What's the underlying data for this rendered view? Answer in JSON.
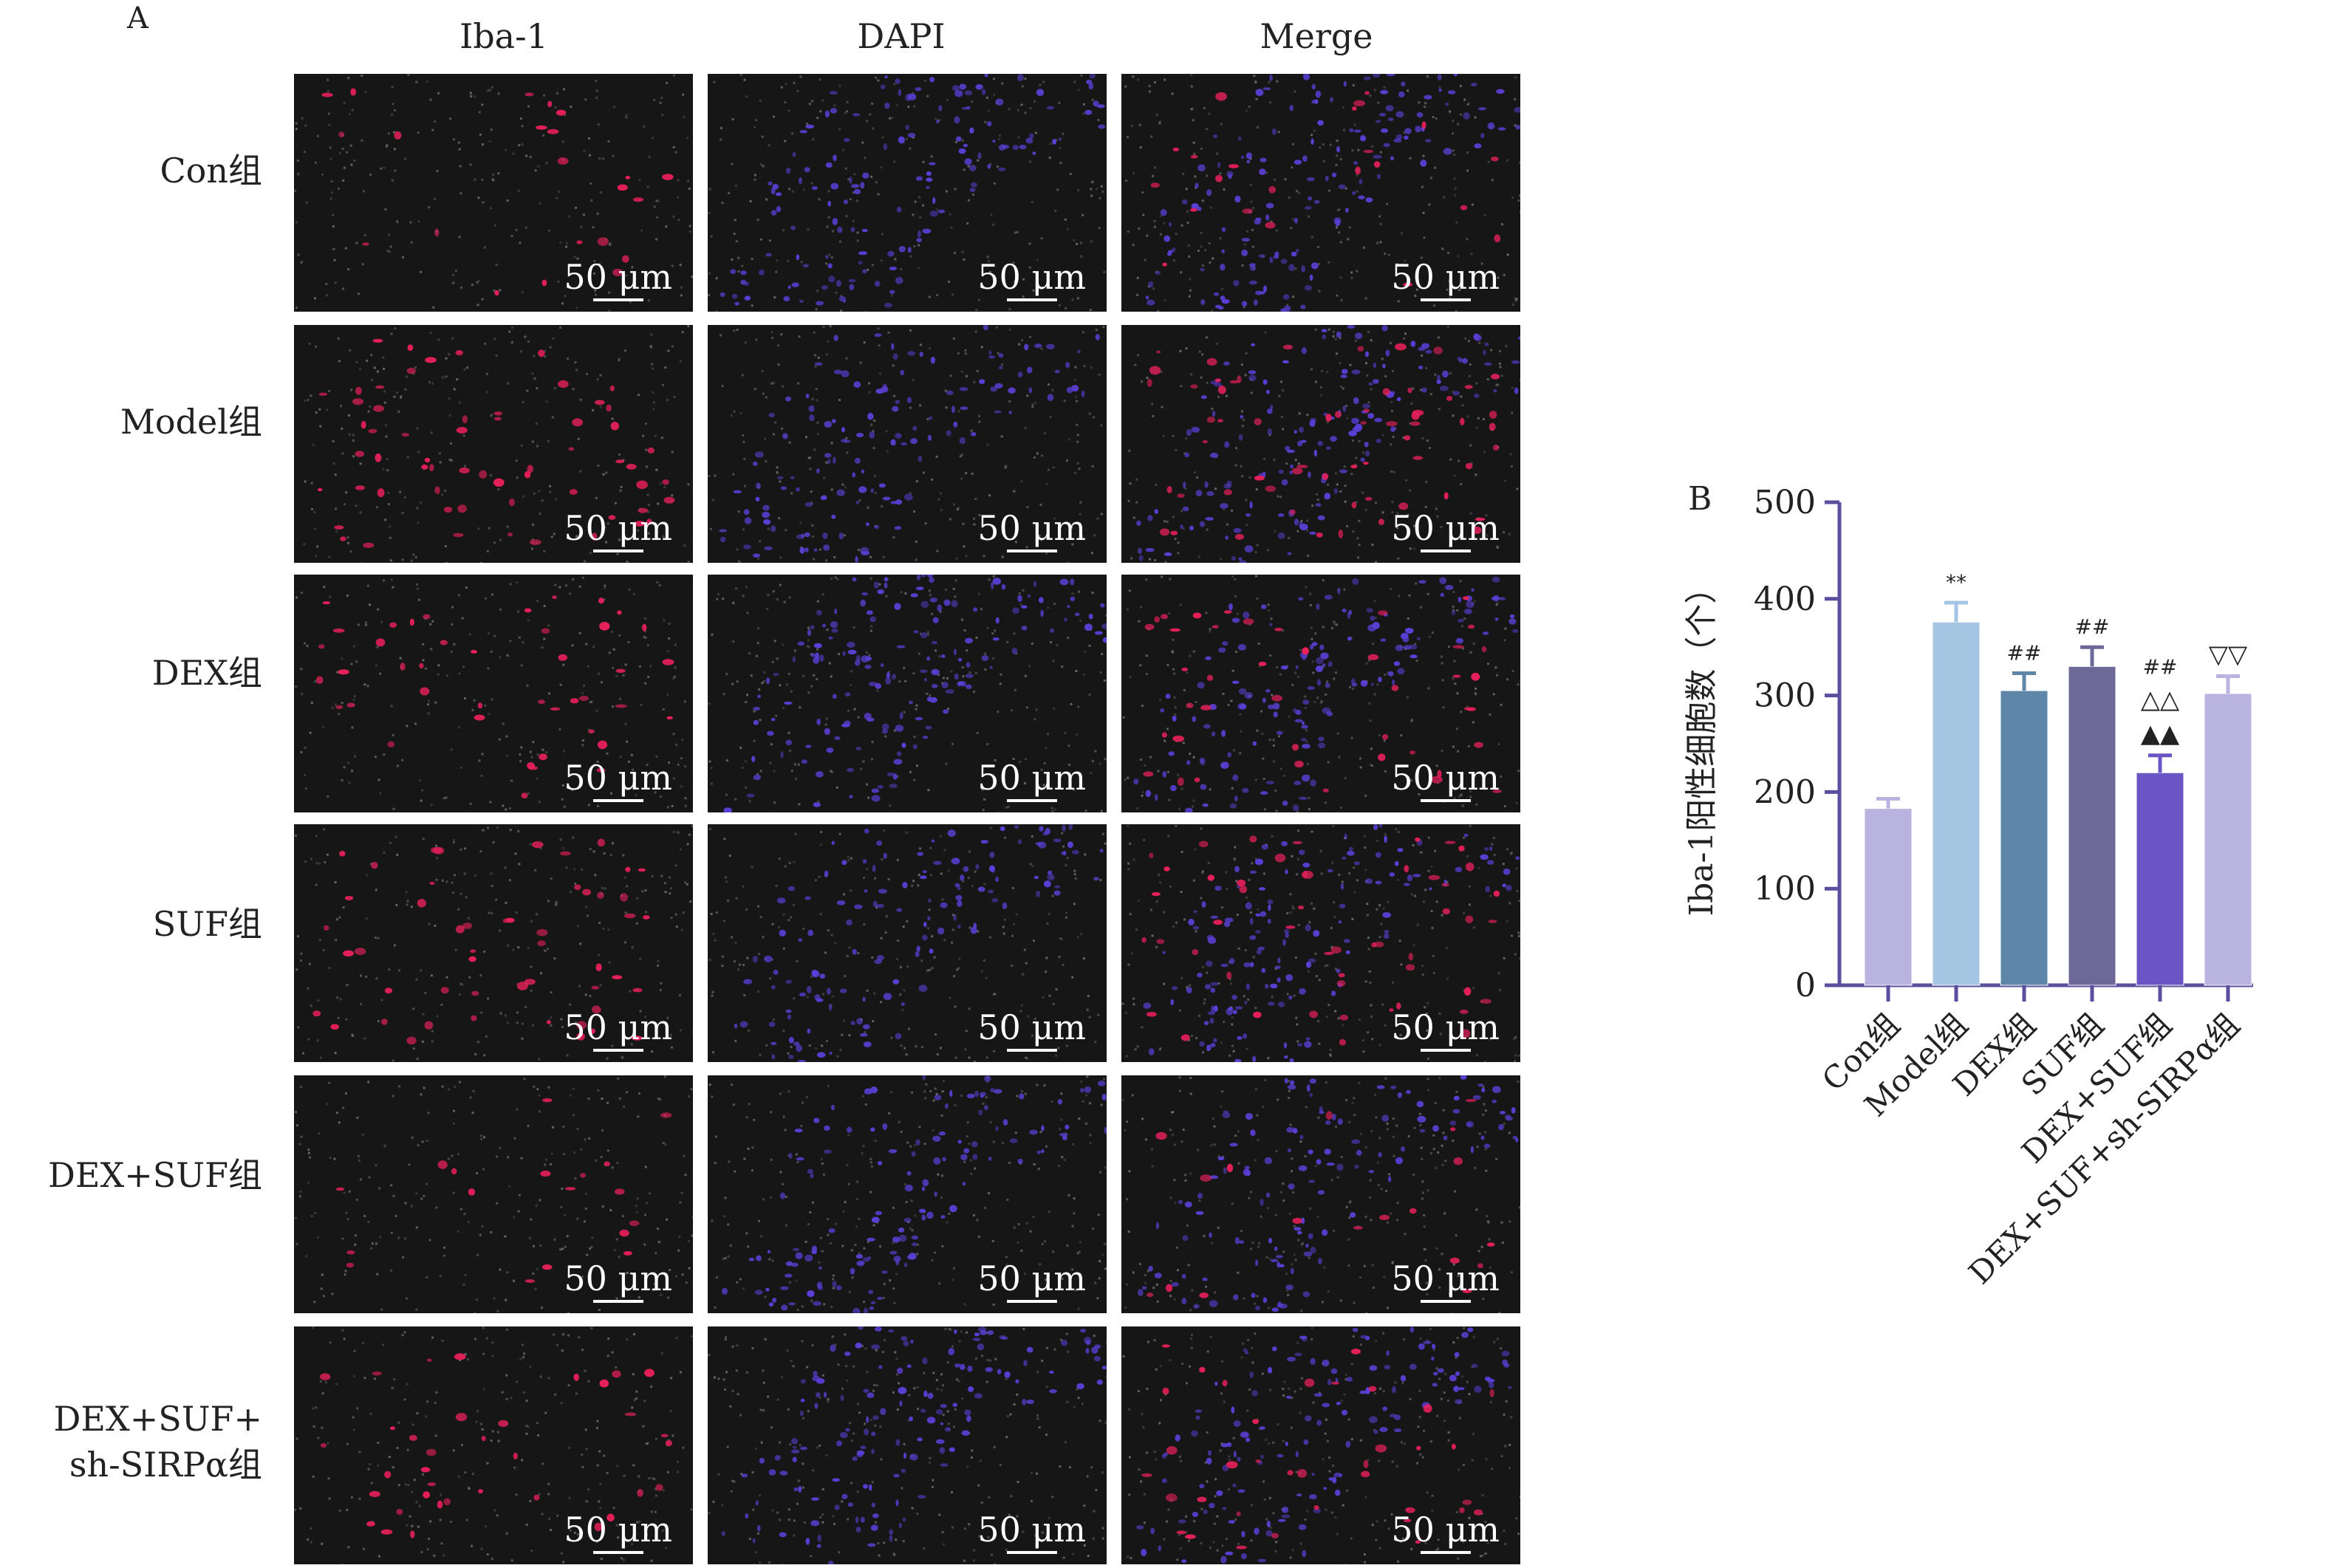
{
  "panel_a": {
    "label": "A",
    "columns": [
      "Iba-1",
      "DAPI",
      "Merge"
    ],
    "rows": [
      {
        "label": "Con组"
      },
      {
        "label": "Model组"
      },
      {
        "label": "DEX组"
      },
      {
        "label": "SUF组"
      },
      {
        "label": "DEX+SUF组"
      },
      {
        "label": "DEX+SUF+\nsh-SIRPα组"
      }
    ],
    "scale_bar": "50 μm",
    "colors": {
      "iba1": "#e8205a",
      "dapi": "#5b3fd6",
      "background": "#161616",
      "noise": "#7a7a7a"
    }
  },
  "panel_b": {
    "label": "B"
  },
  "chart_data": {
    "type": "bar",
    "title": "",
    "xlabel": "",
    "ylabel": "Iba-1阳性细胞数（个）",
    "ylim": [
      0,
      500
    ],
    "yticks": [
      0,
      100,
      200,
      300,
      400,
      500
    ],
    "categories": [
      "Con组",
      "Model组",
      "DEX组",
      "SUF组",
      "DEX+SUF组",
      "DEX+SUF+sh-SIRPα组"
    ],
    "values": [
      183,
      376,
      305,
      330,
      220,
      302
    ],
    "errors": [
      10,
      20,
      18,
      20,
      18,
      18
    ],
    "colors": [
      "#b9b3e0",
      "#a4c6e3",
      "#5e86a8",
      "#6c6898",
      "#6b55c4",
      "#b9b3e0"
    ],
    "annotations": [
      [],
      [
        "**"
      ],
      [
        "##"
      ],
      [
        "##"
      ],
      [
        "##",
        "△△",
        "▲▲"
      ],
      [
        "▽▽"
      ]
    ]
  }
}
